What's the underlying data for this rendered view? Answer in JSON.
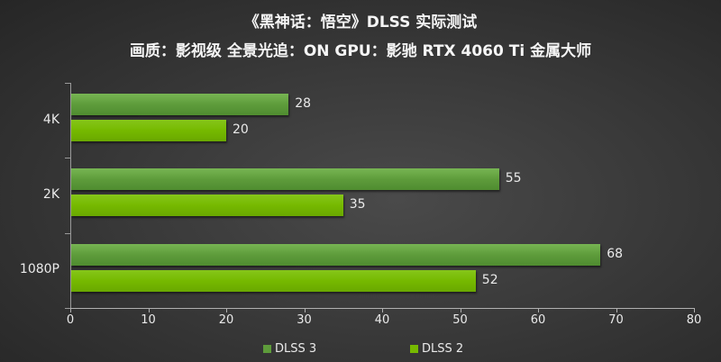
{
  "title": "《黑神话：悟空》DLSS 实际测试",
  "subtitle": "画质：影视级 全景光追：ON GPU：影驰 RTX 4060 Ti 金属大师",
  "chart_data": {
    "type": "bar",
    "orientation": "horizontal",
    "title": "《黑神话：悟空》DLSS 实际测试",
    "subtitle": "画质：影视级 全景光追：ON GPU：影驰 RTX 4060 Ti 金属大师",
    "categories": [
      "4K",
      "2K",
      "1080P"
    ],
    "series": [
      {
        "name": "DLSS 3",
        "values": [
          28,
          55,
          68
        ],
        "color": "#5e9c3b"
      },
      {
        "name": "DLSS 2",
        "values": [
          20,
          35,
          52
        ],
        "color": "#76b900"
      }
    ],
    "xlabel": "",
    "ylabel": "",
    "xlim": [
      0,
      80
    ],
    "xticks": [
      "0",
      "10",
      "20",
      "30",
      "40",
      "50",
      "60",
      "70",
      "80"
    ],
    "grid": false,
    "legend_position": "bottom"
  },
  "legend": [
    {
      "label": "DLSS 3",
      "color": "#5e9c3b"
    },
    {
      "label": "DLSS 2",
      "color": "#76b900"
    }
  ]
}
